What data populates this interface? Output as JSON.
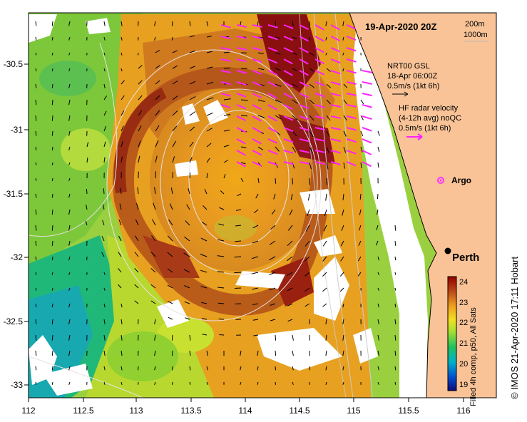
{
  "map": {
    "title": "19-Apr-2020 20Z",
    "depth_labels": [
      "200m",
      "1000m"
    ],
    "x_ticks": [
      "112",
      "112.5",
      "113",
      "113.5",
      "114",
      "114.5",
      "115",
      "115.5",
      "116"
    ],
    "y_ticks": [
      "-30.5",
      "-31",
      "-31.5",
      "-32",
      "-32.5",
      "-33"
    ],
    "legend": {
      "nrt_lines": [
        "NRT00 GSL",
        "18-Apr 06:00Z",
        "0.5m/s (1kt 6h)"
      ],
      "hf_lines": [
        "HF radar velocity",
        "(4-12h avg) noQC",
        "0.5m/s (1kt 6h)"
      ],
      "argo_label": "Argo"
    },
    "city": "Perth",
    "colorbar": {
      "ticks": [
        "24",
        "23",
        "22",
        "21",
        "20",
        "19"
      ],
      "title": "Filled 4h comp, p50, All Sats"
    },
    "credit": "©  IMOS 21-Apr-2020 17:11 Hobart",
    "colors": {
      "land": "#f9c397",
      "argo": "#ff33ff",
      "hf_arrow": "#ff22ff"
    }
  }
}
